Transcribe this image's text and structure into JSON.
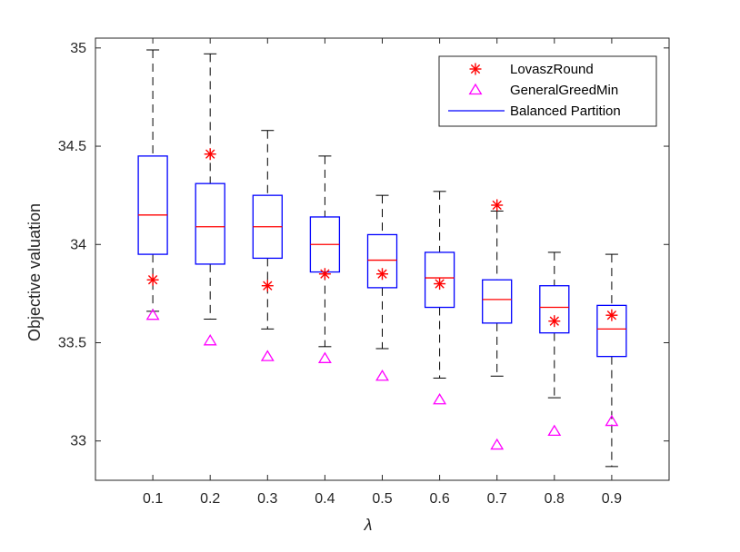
{
  "chart_data": {
    "type": "boxplot",
    "title": "",
    "xlabel": "λ",
    "ylabel": "Objective valuation",
    "ylim": [
      32.8,
      35.05
    ],
    "yticks": [
      33,
      33.5,
      34,
      34.5,
      35
    ],
    "ytick_labels": [
      "33",
      "33.5",
      "34",
      "34.5",
      "35"
    ],
    "categories": [
      "0.1",
      "0.2",
      "0.3",
      "0.4",
      "0.5",
      "0.6",
      "0.7",
      "0.8",
      "0.9"
    ],
    "grid": false,
    "legend_position": "top-right",
    "legend": [
      {
        "name": "LovaszRound",
        "marker": "asterisk",
        "color": "#ff0000"
      },
      {
        "name": "GeneralGreedMin",
        "marker": "triangle",
        "color": "#ff00ff"
      },
      {
        "name": "Balanced Partition",
        "marker": "line",
        "color": "#0000ff"
      }
    ],
    "boxes": [
      {
        "category": "0.1",
        "whisker_low": 33.66,
        "q1": 33.95,
        "median": 34.15,
        "q3": 34.45,
        "whisker_high": 34.99
      },
      {
        "category": "0.2",
        "whisker_low": 33.62,
        "q1": 33.9,
        "median": 34.09,
        "q3": 34.31,
        "whisker_high": 34.97
      },
      {
        "category": "0.3",
        "whisker_low": 33.57,
        "q1": 33.93,
        "median": 34.09,
        "q3": 34.25,
        "whisker_high": 34.58
      },
      {
        "category": "0.4",
        "whisker_low": 33.48,
        "q1": 33.86,
        "median": 34.0,
        "q3": 34.14,
        "whisker_high": 34.45
      },
      {
        "category": "0.5",
        "whisker_low": 33.47,
        "q1": 33.78,
        "median": 33.92,
        "q3": 34.05,
        "whisker_high": 34.25
      },
      {
        "category": "0.6",
        "whisker_low": 33.32,
        "q1": 33.68,
        "median": 33.83,
        "q3": 33.96,
        "whisker_high": 34.27
      },
      {
        "category": "0.7",
        "whisker_low": 33.33,
        "q1": 33.6,
        "median": 33.72,
        "q3": 33.82,
        "whisker_high": 34.17
      },
      {
        "category": "0.8",
        "whisker_low": 33.22,
        "q1": 33.55,
        "median": 33.68,
        "q3": 33.79,
        "whisker_high": 33.96
      },
      {
        "category": "0.9",
        "whisker_low": 32.87,
        "q1": 33.43,
        "median": 33.57,
        "q3": 33.69,
        "whisker_high": 33.95
      }
    ],
    "series": [
      {
        "name": "LovaszRound",
        "values": [
          33.82,
          34.46,
          33.79,
          33.85,
          33.85,
          33.8,
          34.2,
          33.61,
          33.64
        ]
      },
      {
        "name": "GeneralGreedMin",
        "values": [
          33.64,
          33.51,
          33.43,
          33.42,
          33.33,
          33.21,
          32.98,
          33.05,
          33.1
        ]
      }
    ],
    "colors": {
      "box": "#0000ff",
      "median": "#ff0000",
      "whisker": "#000000",
      "lovasz": "#ff0000",
      "greedy": "#ff00ff",
      "axis": "#262626"
    }
  }
}
